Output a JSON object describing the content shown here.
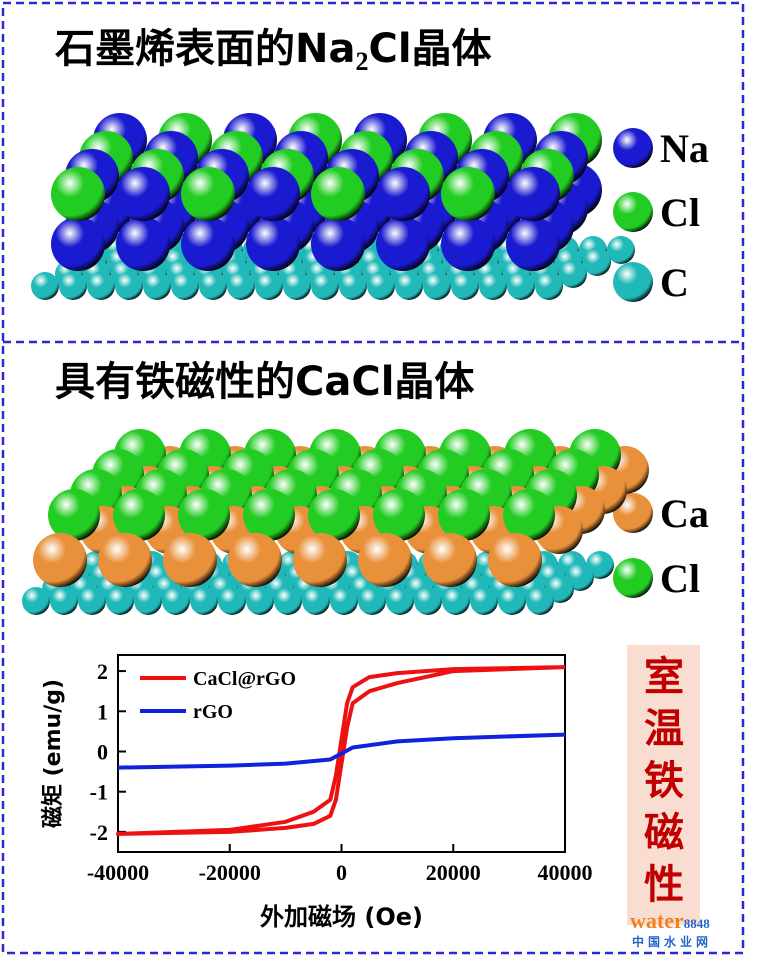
{
  "panels": [
    {
      "title": [
        "石墨烯表面的Na",
        "2",
        "Cl晶体"
      ],
      "legend": [
        {
          "label": "Na",
          "color": "#1a1ad0"
        },
        {
          "label": "Cl",
          "color": "#22cc22"
        },
        {
          "label": "C",
          "color": "#20b8b8"
        }
      ]
    },
    {
      "title": [
        "具有铁磁性的CaCl晶体"
      ],
      "legend": [
        {
          "label": "Ca",
          "color": "#e8903a"
        },
        {
          "label": "Cl",
          "color": "#22cc22"
        }
      ]
    }
  ],
  "chart_data": {
    "type": "line",
    "xlabel": "外加磁场 (Oe)",
    "ylabel": "磁矩 (emu/g)",
    "xlim": [
      -40000,
      40000
    ],
    "ylim": [
      -2.5,
      2.4
    ],
    "xticks": [
      -40000,
      -20000,
      0,
      20000,
      40000
    ],
    "yticks": [
      -2,
      -1,
      0,
      1,
      2
    ],
    "legend": "upper left",
    "series": [
      {
        "name": "CaCl@rGO",
        "color": "#ee1111",
        "x": [
          40000,
          20000,
          10000,
          5000,
          2000,
          1000,
          0,
          -1000,
          -2000,
          -5000,
          -10000,
          -20000,
          -40000,
          -20000,
          -10000,
          -5000,
          -2000,
          -1000,
          0,
          1000,
          2000,
          5000,
          10000,
          20000,
          40000
        ],
        "values": [
          2.1,
          2.05,
          1.95,
          1.85,
          1.6,
          1.2,
          0.3,
          -0.6,
          -1.2,
          -1.5,
          -1.75,
          -1.95,
          -2.05,
          -2.0,
          -1.9,
          -1.8,
          -1.6,
          -1.2,
          -0.3,
          0.6,
          1.2,
          1.5,
          1.7,
          2.0,
          2.1
        ]
      },
      {
        "name": "rGO",
        "color": "#1122dd",
        "x": [
          -40000,
          -20000,
          -10000,
          -2000,
          0,
          2000,
          10000,
          20000,
          40000
        ],
        "values": [
          -0.4,
          -0.35,
          -0.3,
          -0.2,
          -0.05,
          0.1,
          0.25,
          0.33,
          0.42
        ]
      }
    ]
  },
  "side_label": [
    "室",
    "温",
    "铁",
    "磁",
    "性"
  ],
  "watermark": {
    "brand": "water",
    "number": "8848",
    "site": "中国水业网"
  }
}
